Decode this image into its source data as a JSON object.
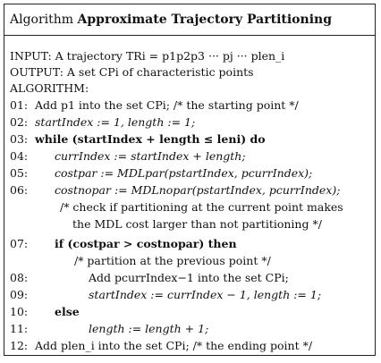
{
  "title": {
    "prefix": "Algorithm",
    "name": "Approximate Trajectory Partitioning"
  },
  "header": {
    "input": "INPUT: A trajectory TRi = p1p2p3 ··· pj ··· plen_i",
    "output": "OUTPUT: A set CPi of characteristic points",
    "algorithm": "ALGORITHM:"
  },
  "lines": [
    {
      "num": "01:",
      "text": "Add p1 into the set CPi;  /* the starting point */"
    },
    {
      "num": "02:",
      "text": "startIndex := 1, length := 1;"
    },
    {
      "num": "03:",
      "text": "while (startIndex + length ≤ leni) do"
    },
    {
      "num": "04:",
      "text": "currIndex := startIndex + length;"
    },
    {
      "num": "05:",
      "text": "costpar := MDLpar(pstartIndex, pcurrIndex);"
    },
    {
      "num": "06:",
      "text": "costnopar := MDLnopar(pstartIndex, pcurrIndex);"
    },
    {
      "num": "",
      "text": "/* check if partitioning at the current point makes"
    },
    {
      "num": "",
      "text": "the MDL cost larger than not partitioning */"
    },
    {
      "num": "07:",
      "text": "if (costpar > costnopar) then"
    },
    {
      "num": "",
      "text": "/* partition at the previous point */"
    },
    {
      "num": "08:",
      "text": "Add pcurrIndex−1 into the set CPi;"
    },
    {
      "num": "09:",
      "text": "startIndex := currIndex − 1, length := 1;"
    },
    {
      "num": "10:",
      "text": "else"
    },
    {
      "num": "11:",
      "text": "length := length + 1;"
    },
    {
      "num": "12:",
      "text": "Add plen_i into the set CPi;  /* the ending point */"
    }
  ]
}
